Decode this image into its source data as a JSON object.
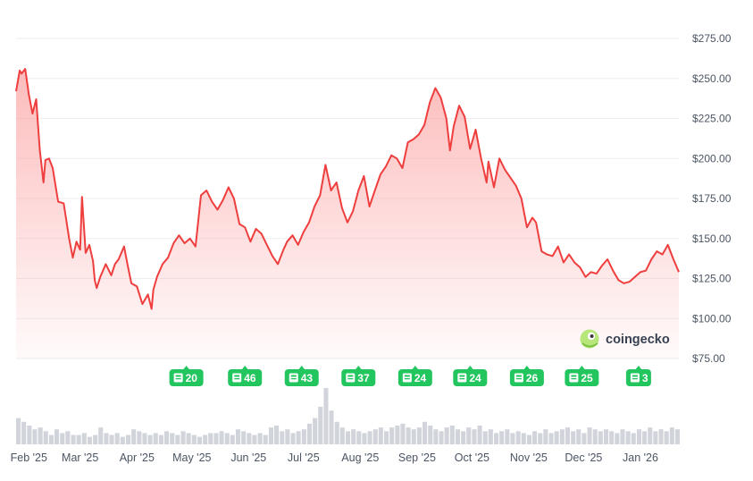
{
  "brand": {
    "name": "coingecko",
    "icon": "gecko-logo-icon"
  },
  "colors": {
    "line": "#ef3e3e",
    "area_top": "#fca5a5",
    "grid": "#eceef2",
    "badge": "#22c55e",
    "volume": "#d1d5db"
  },
  "chart_data": {
    "type": "line",
    "title": "",
    "xlabel": "",
    "ylabel": "",
    "y_tick_labels": [
      "$275.00",
      "$250.00",
      "$225.00",
      "$200.00",
      "$175.00",
      "$150.00",
      "$125.00",
      "$100.00",
      "$75.00"
    ],
    "y_ticks": [
      275,
      250,
      225,
      200,
      175,
      150,
      125,
      100,
      75
    ],
    "ylim": [
      75,
      275
    ],
    "x_tick_labels": [
      "Feb '25",
      "Mar '25",
      "Apr '25",
      "May '25",
      "Jun '25",
      "Jul '25",
      "Aug '25",
      "Sep '25",
      "Oct '25",
      "Nov '25",
      "Dec '25",
      "Jan '26"
    ],
    "x_tick_dates": [
      "2025-02-01",
      "2025-03-01",
      "2025-04-01",
      "2025-05-01",
      "2025-06-01",
      "2025-07-01",
      "2025-08-01",
      "2025-09-01",
      "2025-10-01",
      "2025-11-01",
      "2025-12-01",
      "2026-01-01"
    ],
    "xlim": [
      "2025-01-25",
      "2026-01-22"
    ],
    "grid": true,
    "series": [
      {
        "x": [
          "2025-01-25",
          "2025-01-27",
          "2025-01-28",
          "2025-01-30",
          "2025-02-01",
          "2025-02-03",
          "2025-02-05",
          "2025-02-07",
          "2025-02-09",
          "2025-02-10",
          "2025-02-12",
          "2025-02-14",
          "2025-02-17",
          "2025-02-20",
          "2025-02-23",
          "2025-02-25",
          "2025-02-27",
          "2025-03-01",
          "2025-03-02",
          "2025-03-04",
          "2025-03-06",
          "2025-03-08",
          "2025-03-09",
          "2025-03-10",
          "2025-03-12",
          "2025-03-15",
          "2025-03-18",
          "2025-03-20",
          "2025-03-22",
          "2025-03-25",
          "2025-03-27",
          "2025-03-29",
          "2025-04-01",
          "2025-04-04",
          "2025-04-07",
          "2025-04-09",
          "2025-04-10",
          "2025-04-12",
          "2025-04-15",
          "2025-04-18",
          "2025-04-21",
          "2025-04-24",
          "2025-04-27",
          "2025-04-30",
          "2025-05-03",
          "2025-05-06",
          "2025-05-09",
          "2025-05-12",
          "2025-05-15",
          "2025-05-18",
          "2025-05-21",
          "2025-05-24",
          "2025-05-27",
          "2025-05-30",
          "2025-06-02",
          "2025-06-05",
          "2025-06-08",
          "2025-06-11",
          "2025-06-14",
          "2025-06-17",
          "2025-06-20",
          "2025-06-22",
          "2025-06-25",
          "2025-06-28",
          "2025-07-01",
          "2025-07-04",
          "2025-07-07",
          "2025-07-10",
          "2025-07-13",
          "2025-07-16",
          "2025-07-19",
          "2025-07-22",
          "2025-07-25",
          "2025-07-28",
          "2025-07-31",
          "2025-08-03",
          "2025-08-06",
          "2025-08-09",
          "2025-08-12",
          "2025-08-15",
          "2025-08-18",
          "2025-08-21",
          "2025-08-24",
          "2025-08-27",
          "2025-08-30",
          "2025-09-02",
          "2025-09-05",
          "2025-09-08",
          "2025-09-11",
          "2025-09-14",
          "2025-09-17",
          "2025-09-19",
          "2025-09-21",
          "2025-09-24",
          "2025-09-27",
          "2025-09-30",
          "2025-10-03",
          "2025-10-06",
          "2025-10-09",
          "2025-10-10",
          "2025-10-13",
          "2025-10-16",
          "2025-10-19",
          "2025-10-22",
          "2025-10-25",
          "2025-10-28",
          "2025-10-31",
          "2025-11-03",
          "2025-11-05",
          "2025-11-08",
          "2025-11-11",
          "2025-11-14",
          "2025-11-17",
          "2025-11-20",
          "2025-11-23",
          "2025-11-26",
          "2025-11-29",
          "2025-12-02",
          "2025-12-05",
          "2025-12-08",
          "2025-12-11",
          "2025-12-14",
          "2025-12-17",
          "2025-12-20",
          "2025-12-23",
          "2025-12-26",
          "2025-12-29",
          "2026-01-01",
          "2026-01-04",
          "2026-01-07",
          "2026-01-10",
          "2026-01-13",
          "2026-01-16",
          "2026-01-19",
          "2026-01-22"
        ],
        "values": [
          242,
          255,
          253,
          256,
          240,
          228,
          237,
          205,
          185,
          199,
          200,
          194,
          173,
          172,
          150,
          138,
          148,
          143,
          176,
          141,
          146,
          136,
          124,
          119,
          126,
          134,
          127,
          134,
          137,
          145,
          133,
          122,
          120,
          109,
          115,
          106,
          118,
          126,
          134,
          138,
          147,
          152,
          147,
          150,
          145,
          177,
          180,
          173,
          168,
          174,
          182,
          175,
          159,
          157,
          148,
          156,
          153,
          146,
          139,
          134,
          143,
          148,
          152,
          146,
          154,
          160,
          170,
          177,
          196,
          180,
          185,
          169,
          160,
          167,
          180,
          189,
          170,
          180,
          190,
          195,
          202,
          200,
          194,
          210,
          212,
          215,
          221,
          235,
          244,
          238,
          225,
          205,
          220,
          233,
          226,
          206,
          218,
          200,
          185,
          198,
          182,
          200,
          193,
          188,
          183,
          175,
          157,
          163,
          160,
          142,
          140,
          139,
          145,
          135,
          140,
          135,
          132,
          126,
          129,
          128,
          133,
          137,
          130,
          124,
          122,
          123,
          126,
          129,
          130,
          137,
          142,
          140,
          146,
          137,
          129
        ],
        "color": "#ef3e3e"
      }
    ],
    "news_badges": [
      {
        "date": "2025-04-28",
        "count": "20"
      },
      {
        "date": "2025-05-30",
        "count": "46"
      },
      {
        "date": "2025-06-30",
        "count": "43"
      },
      {
        "date": "2025-07-31",
        "count": "37"
      },
      {
        "date": "2025-08-31",
        "count": "24"
      },
      {
        "date": "2025-09-30",
        "count": "24"
      },
      {
        "date": "2025-10-31",
        "count": "26"
      },
      {
        "date": "2025-11-30",
        "count": "25"
      },
      {
        "date": "2025-12-31",
        "count": "3"
      }
    ],
    "volume": {
      "step_days": 3,
      "start": "2025-01-25",
      "values": [
        14,
        12,
        10,
        8,
        9,
        7,
        5,
        8,
        6,
        7,
        5,
        5,
        6,
        4,
        5,
        9,
        6,
        5,
        6,
        4,
        5,
        8,
        7,
        6,
        5,
        6,
        5,
        7,
        6,
        5,
        7,
        6,
        5,
        4,
        5,
        6,
        6,
        7,
        6,
        5,
        8,
        7,
        6,
        5,
        6,
        5,
        9,
        10,
        7,
        8,
        6,
        7,
        8,
        11,
        14,
        20,
        30,
        18,
        12,
        9,
        7,
        8,
        7,
        6,
        7,
        8,
        9,
        7,
        9,
        10,
        11,
        9,
        8,
        9,
        12,
        10,
        8,
        7,
        9,
        10,
        8,
        7,
        9,
        8,
        10,
        7,
        8,
        6,
        7,
        8,
        6,
        7,
        6,
        5,
        7,
        6,
        8,
        6,
        7,
        8,
        9,
        7,
        8,
        6,
        9,
        8,
        7,
        8,
        7,
        6,
        8,
        7,
        6,
        8,
        7,
        9,
        7,
        8,
        7,
        9,
        8,
        6
      ]
    }
  }
}
